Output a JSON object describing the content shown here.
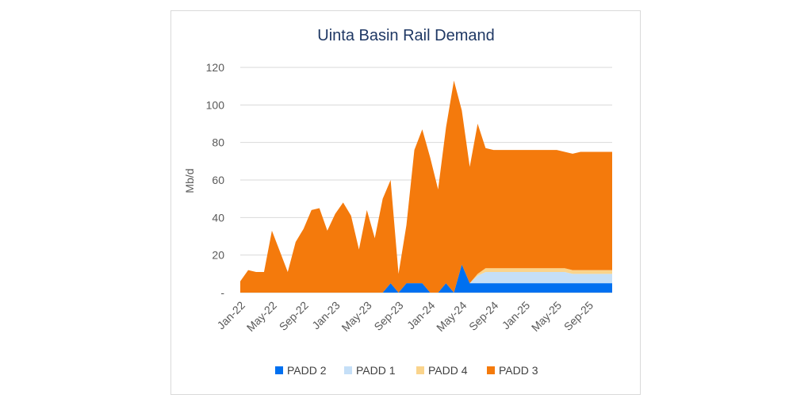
{
  "chart_data": {
    "type": "area",
    "stacked": true,
    "title": "Uinta Basin Rail Demand",
    "xlabel": "",
    "ylabel": "Mb/d",
    "ylim": [
      0,
      120
    ],
    "yticks": [
      {
        "value": 0,
        "label": "-"
      },
      {
        "value": 20,
        "label": "20"
      },
      {
        "value": 40,
        "label": "40"
      },
      {
        "value": 60,
        "label": "60"
      },
      {
        "value": 80,
        "label": "80"
      },
      {
        "value": 100,
        "label": "100"
      },
      {
        "value": 120,
        "label": "120"
      }
    ],
    "grid": true,
    "legend_position": "bottom",
    "categories": [
      "Jan-22",
      "Feb-22",
      "Mar-22",
      "Apr-22",
      "May-22",
      "Jun-22",
      "Jul-22",
      "Aug-22",
      "Sep-22",
      "Oct-22",
      "Nov-22",
      "Dec-22",
      "Jan-23",
      "Feb-23",
      "Mar-23",
      "Apr-23",
      "May-23",
      "Jun-23",
      "Jul-23",
      "Aug-23",
      "Sep-23",
      "Oct-23",
      "Nov-23",
      "Dec-23",
      "Jan-24",
      "Feb-24",
      "Mar-24",
      "Apr-24",
      "May-24",
      "Jun-24",
      "Jul-24",
      "Aug-24",
      "Sep-24",
      "Oct-24",
      "Nov-24",
      "Dec-24",
      "Jan-25",
      "Feb-25",
      "Mar-25",
      "Apr-25",
      "May-25",
      "Jun-25",
      "Jul-25",
      "Aug-25",
      "Sep-25",
      "Oct-25",
      "Nov-25",
      "Dec-25"
    ],
    "x_tick_labels": [
      "Jan-22",
      "May-22",
      "Sep-22",
      "Jan-23",
      "May-23",
      "Sep-23",
      "Jan-24",
      "May-24",
      "Sep-24",
      "Jan-25",
      "May-25",
      "Sep-25"
    ],
    "series": [
      {
        "name": "PADD 2",
        "color": "#0070f0",
        "values": [
          0,
          0,
          0,
          0,
          0,
          0,
          0,
          0,
          0,
          0,
          0,
          0,
          0,
          0,
          0,
          0,
          0,
          0,
          0,
          5,
          0,
          5,
          5,
          5,
          0,
          0,
          5,
          0,
          15,
          5,
          5,
          5,
          5,
          5,
          5,
          5,
          5,
          5,
          5,
          5,
          5,
          5,
          5,
          5,
          5,
          5,
          5,
          5
        ]
      },
      {
        "name": "PADD 1",
        "color": "#c5dff7",
        "values": [
          0,
          0,
          0,
          0,
          0,
          0,
          0,
          0,
          0,
          0,
          0,
          0,
          0,
          0,
          0,
          0,
          0,
          0,
          0,
          0,
          0,
          0,
          0,
          0,
          0,
          0,
          0,
          0,
          0,
          0,
          4,
          6,
          6,
          6,
          6,
          6,
          6,
          6,
          6,
          6,
          6,
          6,
          5,
          5,
          5,
          5,
          5,
          5
        ]
      },
      {
        "name": "PADD 4",
        "color": "#fad48c",
        "values": [
          0,
          0,
          0,
          0,
          0,
          0,
          0,
          0,
          0,
          0,
          0,
          0,
          0,
          0,
          0,
          0,
          0,
          0,
          0,
          0,
          0,
          0,
          0,
          0,
          0,
          0,
          0,
          0,
          0,
          0,
          1,
          2,
          2,
          2,
          2,
          2,
          2,
          2,
          2,
          2,
          2,
          2,
          2,
          2,
          2,
          2,
          2,
          2
        ]
      },
      {
        "name": "PADD 3",
        "color": "#f47a0c",
        "values": [
          6,
          12,
          11,
          11,
          33,
          22,
          11,
          27,
          34,
          44,
          45,
          33,
          42,
          48,
          41,
          23,
          44,
          29,
          50,
          55,
          10,
          31,
          71,
          82,
          72,
          55,
          83,
          113,
          82,
          62,
          80,
          64,
          63,
          63,
          63,
          63,
          63,
          63,
          63,
          63,
          63,
          62,
          62,
          63,
          63,
          63,
          63,
          63
        ]
      }
    ]
  }
}
